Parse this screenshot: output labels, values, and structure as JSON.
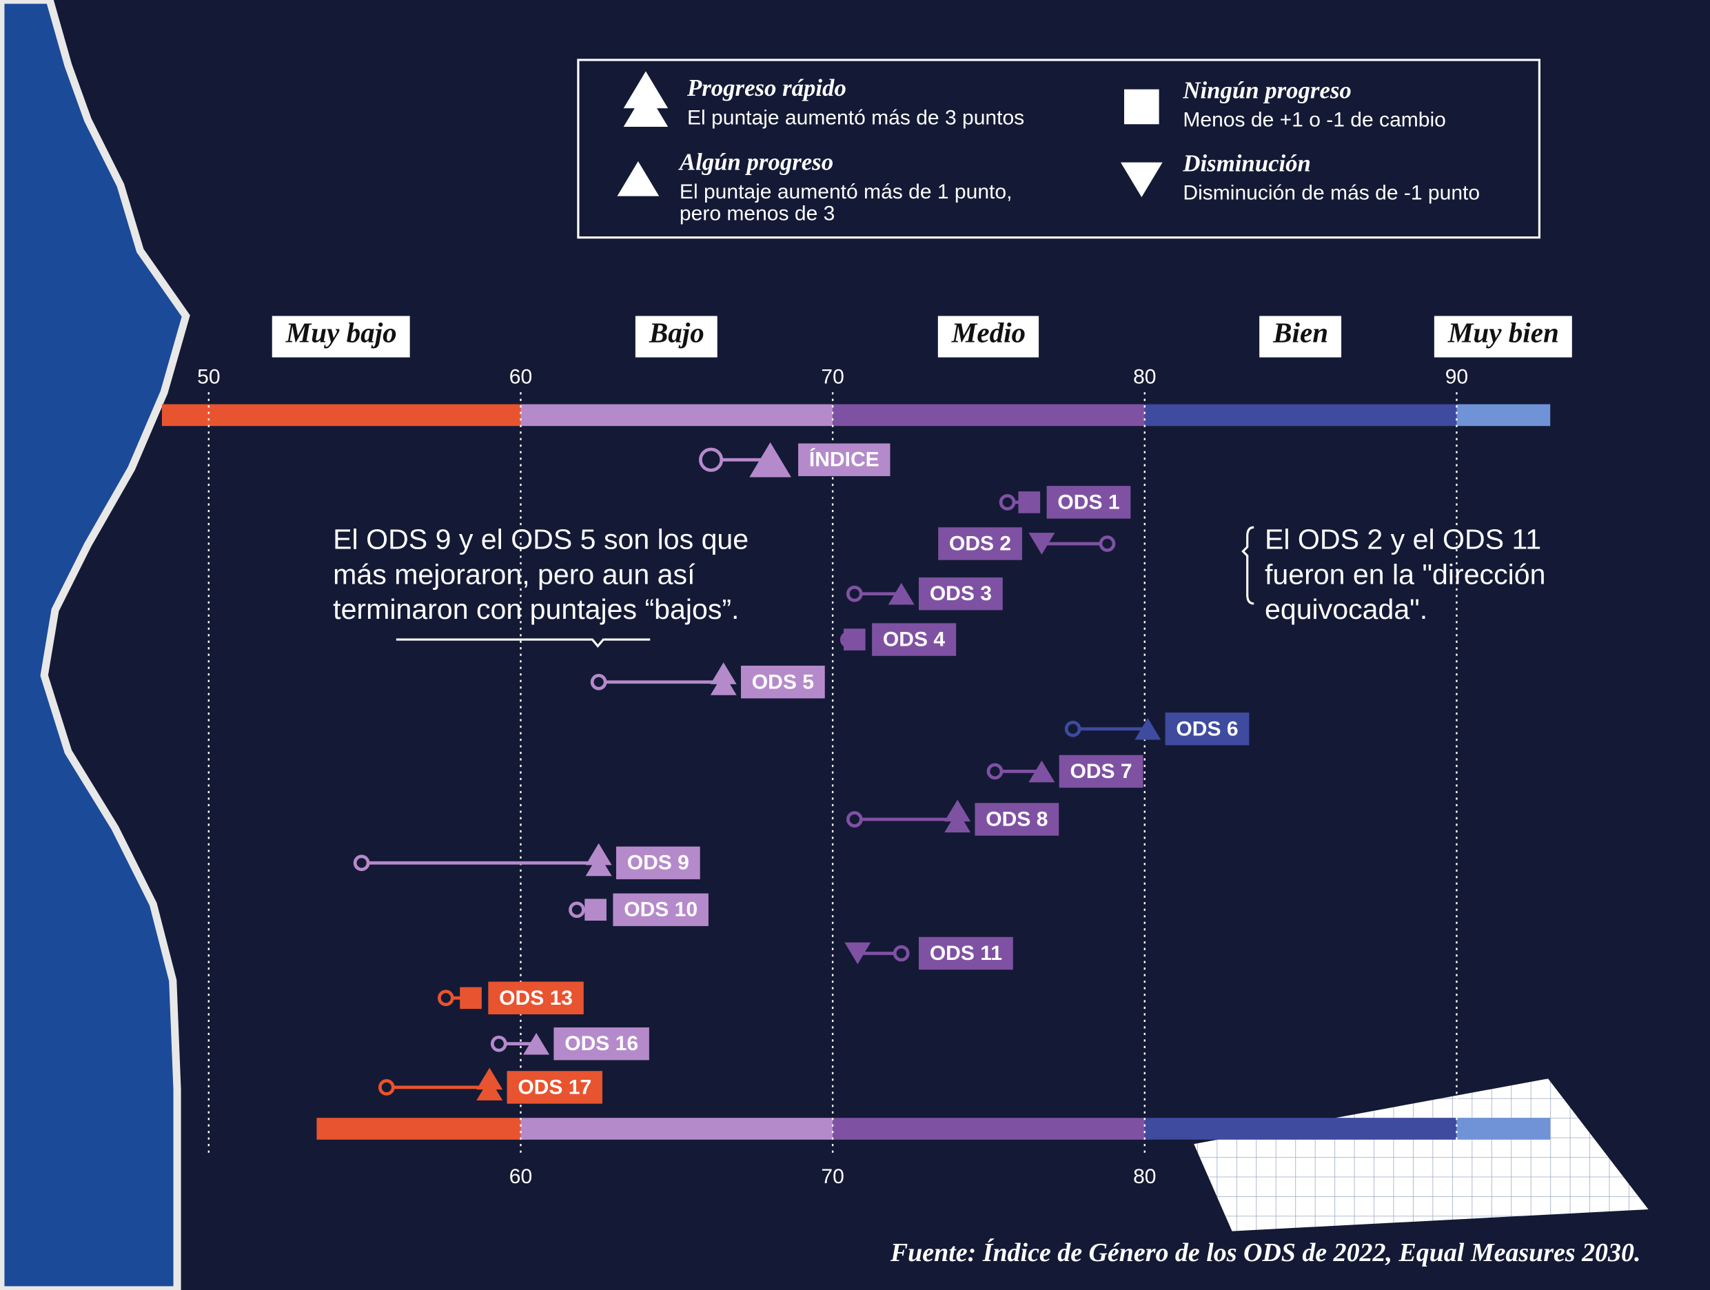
{
  "chart_data": {
    "type": "dumbbell",
    "legend": [
      {
        "status": "rapid",
        "title": "Progreso rápido",
        "desc": [
          "El puntaje aumentó más de 3 puntos"
        ]
      },
      {
        "status": "none",
        "title": "Ningún progreso",
        "desc": [
          "Menos de +1 o -1 de cambio"
        ]
      },
      {
        "status": "some",
        "title": "Algún progreso",
        "desc": [
          "El puntaje aumentó más de 1 punto,",
          "pero menos de 3"
        ]
      },
      {
        "status": "decline",
        "title": "Disminución",
        "desc": [
          "Disminución de más de -1 punto"
        ]
      }
    ],
    "bands": [
      {
        "name": "Muy bajo",
        "from": 48.5,
        "to": 60,
        "color": "#e8542f"
      },
      {
        "name": "Bajo",
        "from": 60,
        "to": 70,
        "color": "#b58acb"
      },
      {
        "name": "Medio",
        "from": 70,
        "to": 80,
        "color": "#7f51a3"
      },
      {
        "name": "Bien",
        "from": 80,
        "to": 90,
        "color": "#3e4b9f"
      },
      {
        "name": "Muy bien",
        "from": 90,
        "to": 93,
        "color": "#6f93d6"
      }
    ],
    "xlim": [
      48.5,
      93
    ],
    "xticks": [
      50,
      60,
      70,
      80,
      90
    ],
    "bottom_xticks": [
      60,
      70,
      80
    ],
    "categories": [
      "ÍNDICE",
      "ODS 1",
      "ODS 2",
      "ODS 3",
      "ODS 4",
      "ODS 5",
      "ODS 6",
      "ODS 7",
      "ODS 8",
      "ODS 9",
      "ODS 10",
      "ODS 11",
      "ODS 13",
      "ODS 16",
      "ODS 17"
    ],
    "start": [
      66.1,
      75.6,
      78.8,
      70.7,
      70.5,
      62.5,
      77.7,
      75.2,
      70.7,
      54.9,
      61.8,
      72.2,
      57.6,
      59.3,
      55.7
    ],
    "end": [
      68.0,
      76.3,
      76.7,
      72.2,
      70.7,
      66.5,
      80.1,
      76.7,
      74.0,
      62.5,
      62.4,
      70.8,
      58.4,
      60.5,
      59.0
    ],
    "status": [
      "some",
      "none",
      "decline",
      "some",
      "none",
      "rapid",
      "some",
      "some",
      "rapid",
      "rapid",
      "none",
      "decline",
      "none",
      "some",
      "rapid"
    ],
    "annotations": [
      [
        "El ODS 9 y el ODS 5 son los que",
        "más mejoraron, pero aun así",
        "terminaron con puntajes “bajos”."
      ],
      [
        "El ODS 2 y el ODS 11",
        "fueron en la \"dirección",
        "equivocada\"."
      ]
    ],
    "source": "Fuente: Índice de Género de los ODS de 2022, Equal Measures 2030."
  }
}
